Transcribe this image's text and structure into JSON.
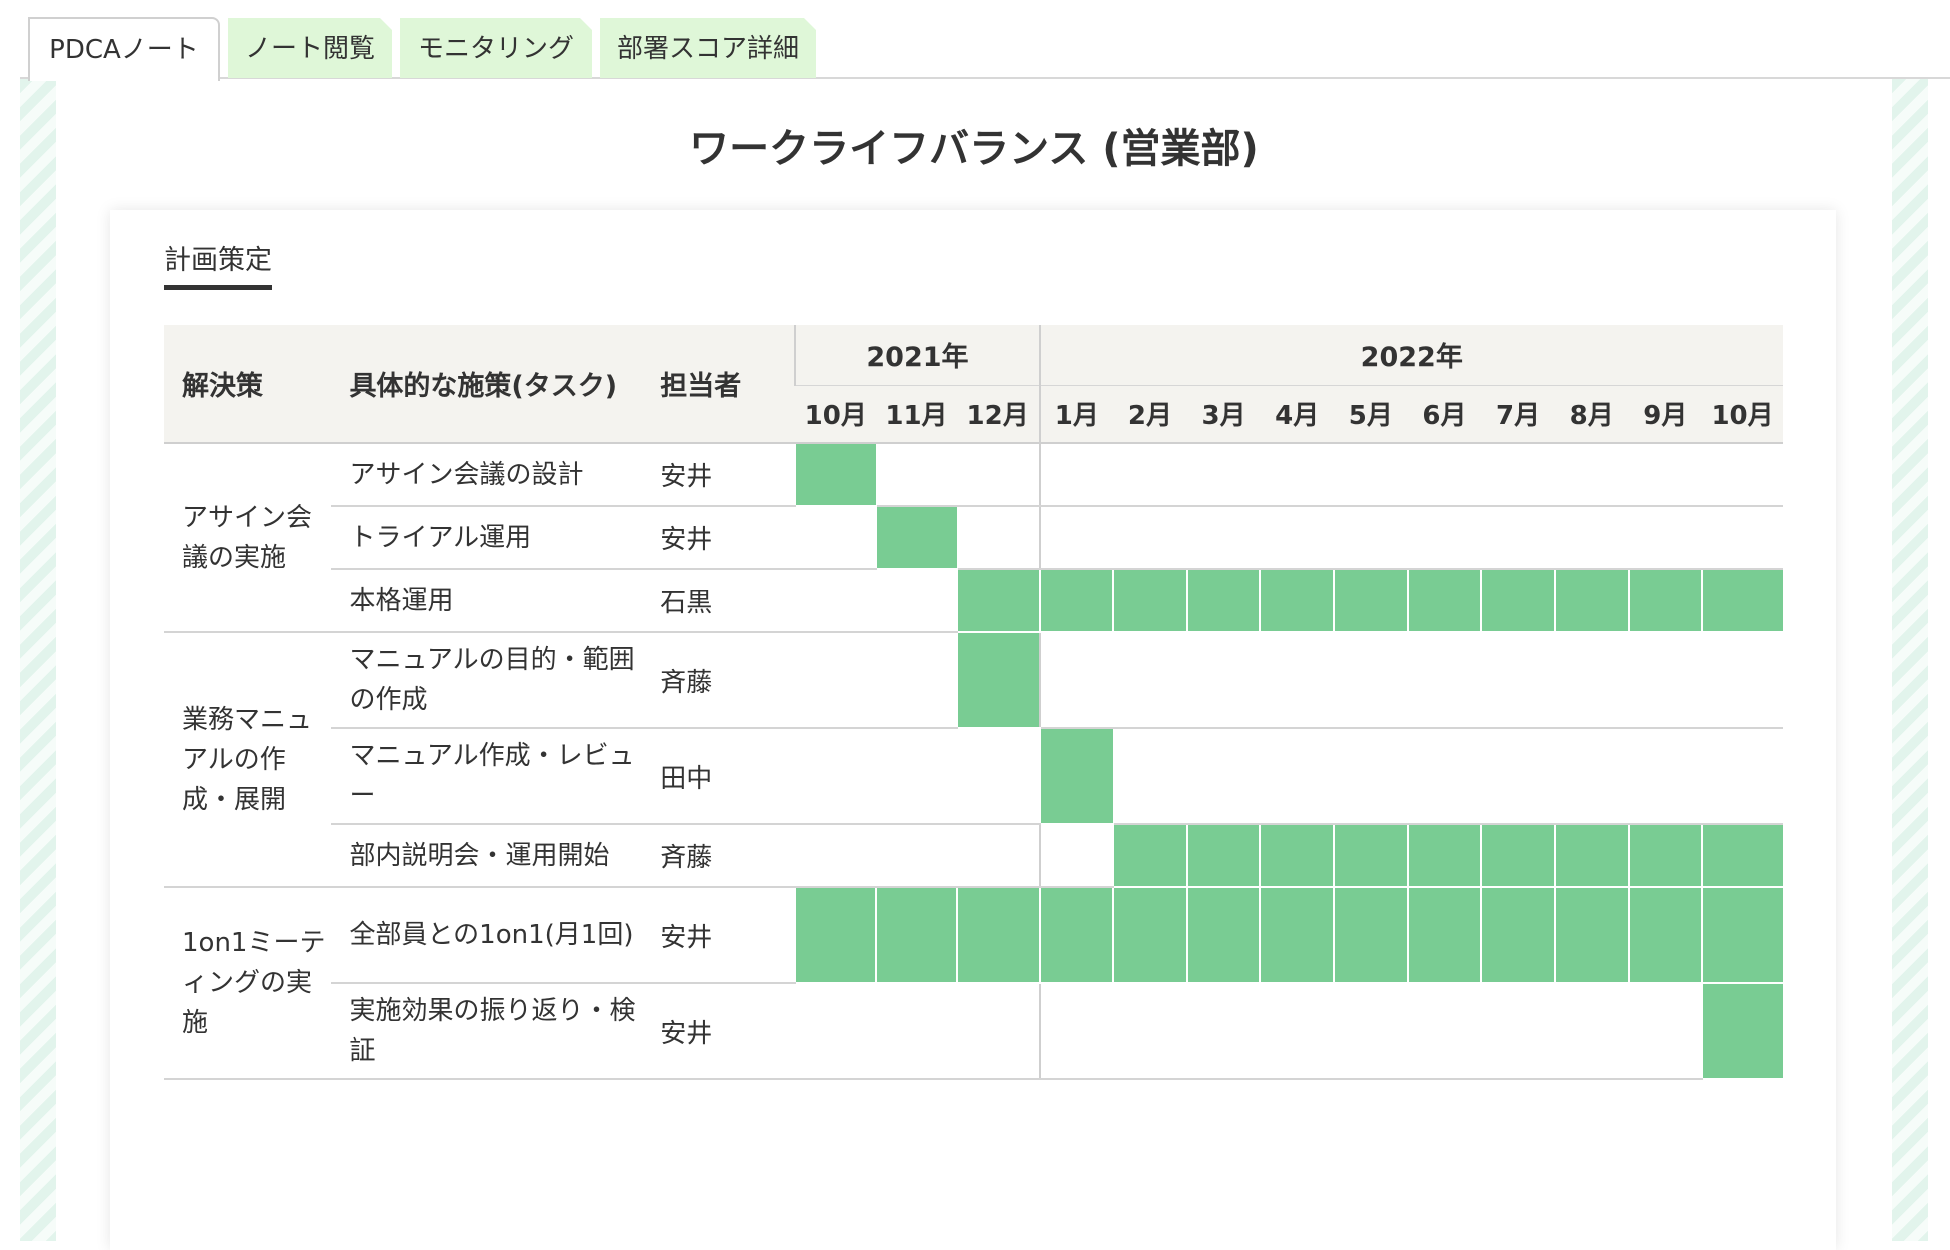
{
  "tabs": [
    {
      "label": "PDCAノート",
      "active": true
    },
    {
      "label": "ノート閲覧",
      "active": false
    },
    {
      "label": "モニタリング",
      "active": false
    },
    {
      "label": "部署スコア詳細",
      "active": false
    }
  ],
  "page_title": "ワークライフバランス (営業部)",
  "section_tab": "計画策定",
  "table": {
    "headers": {
      "solution": "解決策",
      "task": "具体的な施策(タスク)",
      "owner": "担当者",
      "years": [
        {
          "label": "2021年",
          "months": [
            "10月",
            "11月",
            "12月"
          ]
        },
        {
          "label": "2022年",
          "months": [
            "1月",
            "2月",
            "3月",
            "4月",
            "5月",
            "6月",
            "7月",
            "8月",
            "9月",
            "10月"
          ]
        }
      ]
    },
    "groups": [
      {
        "solution": "アサイン会議の実施",
        "rows": [
          {
            "task": "アサイン会議の設計",
            "owner": "安井",
            "active": [
              0
            ]
          },
          {
            "task": "トライアル運用",
            "owner": "安井",
            "active": [
              1
            ]
          },
          {
            "task": "本格運用",
            "owner": "石黒",
            "active": [
              2,
              3,
              4,
              5,
              6,
              7,
              8,
              9,
              10,
              11,
              12
            ]
          }
        ]
      },
      {
        "solution": "業務マニュアルの作成・展開",
        "rows": [
          {
            "task": "マニュアルの目的・範囲の作成",
            "owner": "斉藤",
            "active": [
              2
            ]
          },
          {
            "task": "マニュアル作成・レビュー",
            "owner": "田中",
            "active": [
              3
            ]
          },
          {
            "task": "部内説明会・運用開始",
            "owner": "斉藤",
            "active": [
              4,
              5,
              6,
              7,
              8,
              9,
              10,
              11,
              12
            ]
          }
        ]
      },
      {
        "solution": "1on1ミーティングの実施",
        "rows": [
          {
            "task": "全部員との1on1(月1回)",
            "owner": "安井",
            "active": [
              0,
              1,
              2,
              3,
              4,
              5,
              6,
              7,
              8,
              9,
              10,
              11,
              12
            ]
          },
          {
            "task": "実施効果の振り返り・検証",
            "owner": "安井",
            "active": [
              12
            ]
          }
        ]
      }
    ]
  },
  "colors": {
    "bar": "#79cc93",
    "tab_inactive": "#dff7d8",
    "header_bg": "#f4f3ef"
  }
}
